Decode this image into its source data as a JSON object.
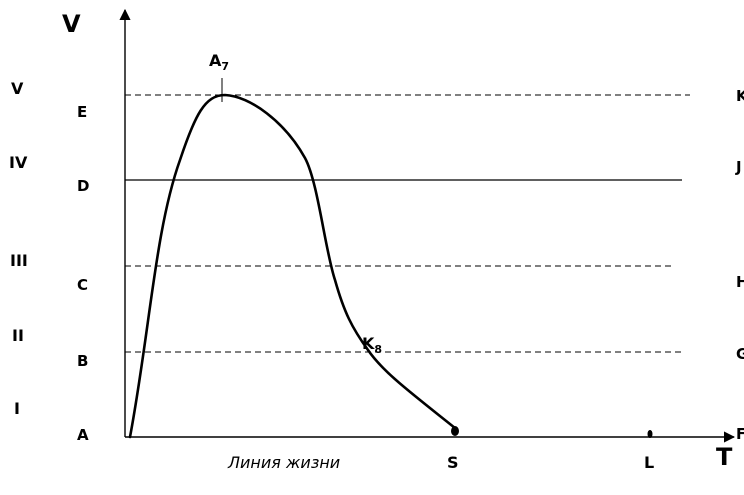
{
  "diagram": {
    "y_axis_label": "V",
    "x_axis_label": "T",
    "x_axis_caption": "Линия жизни",
    "roman_levels": [
      "I",
      "II",
      "III",
      "IV",
      "V"
    ],
    "left_levels": [
      "A",
      "B",
      "C",
      "D",
      "E"
    ],
    "right_levels": [
      "F",
      "G",
      "H",
      "J",
      "K"
    ],
    "x_markers": [
      "S",
      "L"
    ],
    "peak_label": {
      "main": "A",
      "sub": "7"
    },
    "decline_label": {
      "main": "K",
      "sub": "8"
    },
    "line_color": "#000000"
  }
}
